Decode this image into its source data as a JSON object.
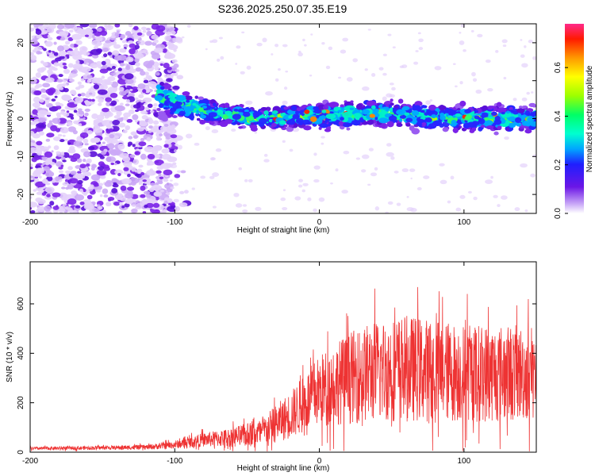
{
  "chart_data": [
    {
      "type": "heatmap",
      "title": "S236.2025.250.07.35.E19",
      "xlabel": "Height of straight line (km)",
      "ylabel": "Frequency (Hz)",
      "xlim": [
        -200,
        150
      ],
      "ylim": [
        -25,
        25
      ],
      "xticks": [
        -200,
        -100,
        0,
        100
      ],
      "yticks": [
        -20,
        -10,
        0,
        10,
        20
      ],
      "colorbar": {
        "label": "Normalized spectral amplitude",
        "range": [
          0.0,
          0.78
        ],
        "ticks": [
          "0.0",
          "0.2",
          "0.4",
          "0.6"
        ],
        "tick_values": [
          0.0,
          0.2,
          0.4,
          0.6
        ]
      },
      "ridge": {
        "description": "Energy band centred near 0 Hz for heights above -100 km",
        "x": [
          -110,
          -100,
          -80,
          -60,
          -40,
          -20,
          0,
          20,
          40,
          60,
          80,
          100,
          120,
          150
        ],
        "center_hz": [
          6,
          4,
          2,
          1,
          0,
          0.5,
          1,
          1,
          1.5,
          1,
          0.5,
          0,
          0,
          0
        ],
        "halfwidth_hz": [
          5,
          4,
          3.5,
          3,
          3,
          3,
          3.5,
          3.5,
          3.5,
          3.5,
          3.5,
          3.5,
          3.5,
          3.5
        ]
      }
    },
    {
      "type": "line",
      "xlabel": "Height of straight line (km)",
      "ylabel": "SNR (10 * v/v)",
      "xlim": [
        -200,
        150
      ],
      "ylim": [
        0,
        770
      ],
      "xticks": [
        -200,
        -100,
        0,
        100
      ],
      "yticks": [
        0,
        200,
        400,
        600
      ],
      "color": "#ee3333",
      "envelope": {
        "x": [
          -200,
          -150,
          -120,
          -100,
          -80,
          -60,
          -40,
          -20,
          0,
          20,
          40,
          60,
          80,
          100,
          120,
          150
        ],
        "mean": [
          15,
          18,
          20,
          30,
          50,
          60,
          80,
          150,
          250,
          300,
          330,
          340,
          330,
          320,
          320,
          320
        ],
        "spread": [
          8,
          10,
          12,
          20,
          35,
          50,
          70,
          120,
          180,
          230,
          260,
          270,
          260,
          250,
          250,
          240
        ]
      }
    }
  ]
}
